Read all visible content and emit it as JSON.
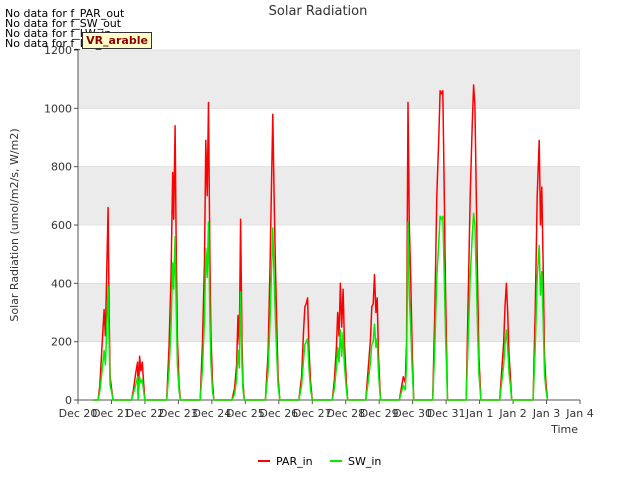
{
  "no_data_messages": [
    "No data for f_PAR_out",
    "No data for f_SW_out",
    "No data for f_LW_in",
    "No data for f_LW_out"
  ],
  "badge_label": "VR_arable",
  "chart_data": {
    "type": "line",
    "title": "Solar Radiation",
    "xlabel": "Time",
    "ylabel": "Solar Radiation (umol/m2/s, W/m2)",
    "ylim": [
      0,
      1200
    ],
    "yticks": [
      0,
      200,
      400,
      600,
      800,
      1000,
      1200
    ],
    "xlim": [
      0,
      15
    ],
    "xticks": [
      {
        "x": 0,
        "label": "Dec 20"
      },
      {
        "x": 1,
        "label": "Dec 21"
      },
      {
        "x": 2,
        "label": "Dec 22"
      },
      {
        "x": 3,
        "label": "Dec 23"
      },
      {
        "x": 4,
        "label": "Dec 24"
      },
      {
        "x": 5,
        "label": "Dec 25"
      },
      {
        "x": 6,
        "label": "Dec 26"
      },
      {
        "x": 7,
        "label": "Dec 27"
      },
      {
        "x": 8,
        "label": "Dec 28"
      },
      {
        "x": 9,
        "label": "Dec 29"
      },
      {
        "x": 10,
        "label": "Dec 30"
      },
      {
        "x": 11,
        "label": "Dec 31"
      },
      {
        "x": 12,
        "label": "Jan 1"
      },
      {
        "x": 13,
        "label": "Jan 2"
      },
      {
        "x": 14,
        "label": "Jan 3"
      },
      {
        "x": 15,
        "label": "Jan 4"
      }
    ],
    "series": [
      {
        "name": "PAR_in",
        "color": "#ff0000",
        "points": [
          [
            0.45,
            0
          ],
          [
            0.6,
            0
          ],
          [
            0.65,
            50
          ],
          [
            0.72,
            190
          ],
          [
            0.78,
            310
          ],
          [
            0.82,
            220
          ],
          [
            0.86,
            450
          ],
          [
            0.9,
            660
          ],
          [
            0.93,
            300
          ],
          [
            0.96,
            80
          ],
          [
            1.0,
            40
          ],
          [
            1.05,
            0
          ],
          [
            1.8,
            0
          ],
          [
            1.6,
            0
          ],
          [
            1.65,
            30
          ],
          [
            1.72,
            90
          ],
          [
            1.78,
            130
          ],
          [
            1.84,
            150
          ],
          [
            1.88,
            100
          ],
          [
            1.92,
            130
          ],
          [
            1.96,
            60
          ],
          [
            2.0,
            0
          ],
          [
            2.65,
            0
          ],
          [
            2.72,
            180
          ],
          [
            2.78,
            420
          ],
          [
            2.83,
            780
          ],
          [
            2.86,
            620
          ],
          [
            2.9,
            940
          ],
          [
            2.93,
            560
          ],
          [
            2.97,
            210
          ],
          [
            3.02,
            50
          ],
          [
            3.06,
            0
          ],
          [
            3.65,
            0
          ],
          [
            3.72,
            200
          ],
          [
            3.78,
            480
          ],
          [
            3.82,
            890
          ],
          [
            3.86,
            700
          ],
          [
            3.9,
            1020
          ],
          [
            3.94,
            480
          ],
          [
            3.97,
            230
          ],
          [
            4.02,
            60
          ],
          [
            4.06,
            0
          ],
          [
            4.6,
            0
          ],
          [
            4.68,
            40
          ],
          [
            4.74,
            120
          ],
          [
            4.78,
            290
          ],
          [
            4.82,
            190
          ],
          [
            4.86,
            620
          ],
          [
            4.9,
            200
          ],
          [
            4.93,
            60
          ],
          [
            4.97,
            0
          ],
          [
            5.6,
            0
          ],
          [
            5.68,
            160
          ],
          [
            5.74,
            470
          ],
          [
            5.78,
            720
          ],
          [
            5.82,
            980
          ],
          [
            5.86,
            700
          ],
          [
            5.9,
            450
          ],
          [
            5.94,
            250
          ],
          [
            5.98,
            80
          ],
          [
            6.03,
            0
          ],
          [
            6.6,
            0
          ],
          [
            6.68,
            80
          ],
          [
            6.74,
            240
          ],
          [
            6.78,
            320
          ],
          [
            6.82,
            330
          ],
          [
            6.86,
            350
          ],
          [
            6.9,
            180
          ],
          [
            6.95,
            60
          ],
          [
            7.0,
            0
          ],
          [
            7.6,
            0
          ],
          [
            7.66,
            70
          ],
          [
            7.72,
            180
          ],
          [
            7.76,
            300
          ],
          [
            7.8,
            220
          ],
          [
            7.84,
            400
          ],
          [
            7.88,
            250
          ],
          [
            7.92,
            380
          ],
          [
            7.96,
            200
          ],
          [
            8.02,
            60
          ],
          [
            8.06,
            0
          ],
          [
            8.6,
            0
          ],
          [
            8.68,
            120
          ],
          [
            8.74,
            210
          ],
          [
            8.78,
            320
          ],
          [
            8.82,
            330
          ],
          [
            8.86,
            430
          ],
          [
            8.9,
            300
          ],
          [
            8.94,
            350
          ],
          [
            8.98,
            150
          ],
          [
            9.04,
            0
          ],
          [
            9.6,
            0
          ],
          [
            9.66,
            40
          ],
          [
            9.72,
            80
          ],
          [
            9.78,
            60
          ],
          [
            9.82,
            200
          ],
          [
            9.86,
            1020
          ],
          [
            9.9,
            600
          ],
          [
            9.94,
            420
          ],
          [
            9.98,
            200
          ],
          [
            10.03,
            0
          ],
          [
            10.6,
            0
          ],
          [
            10.66,
            300
          ],
          [
            10.72,
            700
          ],
          [
            10.78,
            900
          ],
          [
            10.82,
            1060
          ],
          [
            10.86,
            1050
          ],
          [
            10.9,
            1060
          ],
          [
            10.94,
            750
          ],
          [
            10.98,
            380
          ],
          [
            11.04,
            0
          ],
          [
            11.6,
            0
          ],
          [
            11.66,
            350
          ],
          [
            11.72,
            700
          ],
          [
            11.78,
            940
          ],
          [
            11.82,
            1080
          ],
          [
            11.86,
            1010
          ],
          [
            11.9,
            700
          ],
          [
            11.94,
            400
          ],
          [
            11.98,
            150
          ],
          [
            12.04,
            0
          ],
          [
            12.6,
            0
          ],
          [
            12.66,
            100
          ],
          [
            12.72,
            200
          ],
          [
            12.76,
            320
          ],
          [
            12.8,
            400
          ],
          [
            12.84,
            300
          ],
          [
            12.88,
            150
          ],
          [
            12.92,
            80
          ],
          [
            12.96,
            0
          ],
          [
            13.6,
            0
          ],
          [
            13.66,
            300
          ],
          [
            13.72,
            700
          ],
          [
            13.78,
            890
          ],
          [
            13.82,
            600
          ],
          [
            13.86,
            730
          ],
          [
            13.9,
            450
          ],
          [
            13.94,
            150
          ],
          [
            13.98,
            60
          ],
          [
            14.03,
            0
          ]
        ]
      },
      {
        "name": "SW_in",
        "color": "#00ee00",
        "points": [
          [
            0.45,
            0
          ],
          [
            0.6,
            0
          ],
          [
            0.65,
            30
          ],
          [
            0.72,
            100
          ],
          [
            0.78,
            170
          ],
          [
            0.82,
            120
          ],
          [
            0.86,
            250
          ],
          [
            0.9,
            390
          ],
          [
            0.93,
            200
          ],
          [
            0.96,
            50
          ],
          [
            1.0,
            30
          ],
          [
            1.05,
            0
          ],
          [
            1.8,
            0
          ],
          [
            1.6,
            0
          ],
          [
            1.65,
            20
          ],
          [
            1.72,
            50
          ],
          [
            1.78,
            80
          ],
          [
            1.84,
            80
          ],
          [
            1.88,
            60
          ],
          [
            1.92,
            70
          ],
          [
            1.96,
            30
          ],
          [
            2.0,
            0
          ],
          [
            2.65,
            0
          ],
          [
            2.72,
            100
          ],
          [
            2.78,
            250
          ],
          [
            2.83,
            470
          ],
          [
            2.86,
            380
          ],
          [
            2.9,
            560
          ],
          [
            2.93,
            340
          ],
          [
            2.97,
            120
          ],
          [
            3.02,
            30
          ],
          [
            3.06,
            0
          ],
          [
            3.65,
            0
          ],
          [
            3.72,
            110
          ],
          [
            3.78,
            280
          ],
          [
            3.82,
            520
          ],
          [
            3.86,
            420
          ],
          [
            3.9,
            610
          ],
          [
            3.94,
            280
          ],
          [
            3.97,
            130
          ],
          [
            4.02,
            30
          ],
          [
            4.06,
            0
          ],
          [
            4.6,
            0
          ],
          [
            4.68,
            20
          ],
          [
            4.74,
            70
          ],
          [
            4.78,
            170
          ],
          [
            4.82,
            110
          ],
          [
            4.86,
            370
          ],
          [
            4.9,
            120
          ],
          [
            4.93,
            35
          ],
          [
            4.97,
            0
          ],
          [
            5.6,
            0
          ],
          [
            5.68,
            100
          ],
          [
            5.74,
            280
          ],
          [
            5.78,
            430
          ],
          [
            5.82,
            590
          ],
          [
            5.86,
            420
          ],
          [
            5.9,
            270
          ],
          [
            5.94,
            150
          ],
          [
            5.98,
            50
          ],
          [
            6.03,
            0
          ],
          [
            6.6,
            0
          ],
          [
            6.68,
            50
          ],
          [
            6.74,
            140
          ],
          [
            6.78,
            190
          ],
          [
            6.82,
            200
          ],
          [
            6.86,
            210
          ],
          [
            6.9,
            110
          ],
          [
            6.95,
            35
          ],
          [
            7.0,
            0
          ],
          [
            7.6,
            0
          ],
          [
            7.66,
            40
          ],
          [
            7.72,
            110
          ],
          [
            7.76,
            180
          ],
          [
            7.8,
            130
          ],
          [
            7.84,
            240
          ],
          [
            7.88,
            150
          ],
          [
            7.92,
            230
          ],
          [
            7.96,
            120
          ],
          [
            8.02,
            35
          ],
          [
            8.06,
            0
          ],
          [
            8.6,
            0
          ],
          [
            8.68,
            70
          ],
          [
            8.74,
            130
          ],
          [
            8.78,
            190
          ],
          [
            8.82,
            200
          ],
          [
            8.86,
            260
          ],
          [
            8.9,
            180
          ],
          [
            8.94,
            210
          ],
          [
            8.98,
            90
          ],
          [
            9.04,
            0
          ],
          [
            9.6,
            0
          ],
          [
            9.66,
            25
          ],
          [
            9.72,
            50
          ],
          [
            9.78,
            35
          ],
          [
            9.82,
            120
          ],
          [
            9.86,
            610
          ],
          [
            9.9,
            360
          ],
          [
            9.94,
            250
          ],
          [
            9.98,
            120
          ],
          [
            10.03,
            0
          ],
          [
            10.6,
            0
          ],
          [
            10.66,
            180
          ],
          [
            10.72,
            420
          ],
          [
            10.78,
            540
          ],
          [
            10.82,
            630
          ],
          [
            10.86,
            620
          ],
          [
            10.9,
            630
          ],
          [
            10.94,
            450
          ],
          [
            10.98,
            230
          ],
          [
            11.04,
            0
          ],
          [
            11.6,
            0
          ],
          [
            11.66,
            210
          ],
          [
            11.72,
            420
          ],
          [
            11.78,
            560
          ],
          [
            11.82,
            640
          ],
          [
            11.86,
            600
          ],
          [
            11.9,
            420
          ],
          [
            11.94,
            240
          ],
          [
            11.98,
            90
          ],
          [
            12.04,
            0
          ],
          [
            12.6,
            0
          ],
          [
            12.66,
            60
          ],
          [
            12.72,
            120
          ],
          [
            12.76,
            190
          ],
          [
            12.8,
            240
          ],
          [
            12.84,
            180
          ],
          [
            12.88,
            90
          ],
          [
            12.92,
            50
          ],
          [
            12.96,
            0
          ],
          [
            13.6,
            0
          ],
          [
            13.66,
            180
          ],
          [
            13.72,
            420
          ],
          [
            13.78,
            530
          ],
          [
            13.82,
            360
          ],
          [
            13.86,
            440
          ],
          [
            13.9,
            270
          ],
          [
            13.94,
            90
          ],
          [
            13.98,
            35
          ],
          [
            14.03,
            0
          ]
        ]
      }
    ],
    "legend": [
      "PAR_in",
      "SW_in"
    ]
  }
}
